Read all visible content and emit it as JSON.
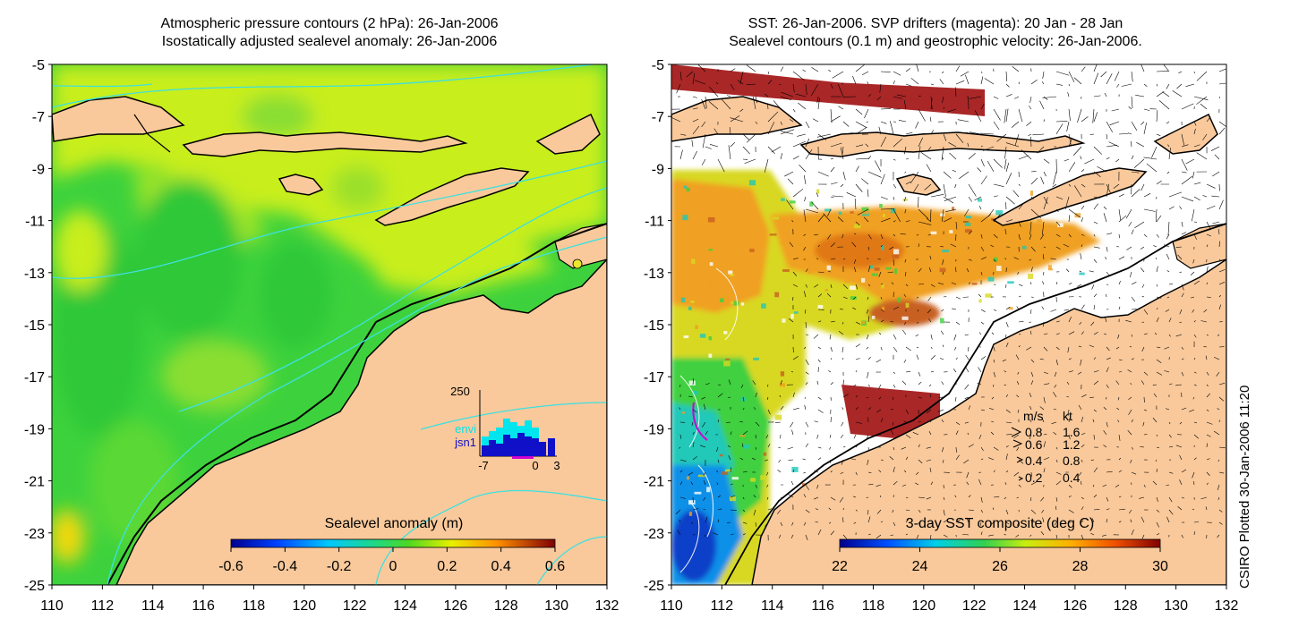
{
  "left_panel": {
    "title_line1": "Atmospheric pressure contours (2 hPa): 26-Jan-2006",
    "title_line2": "Isostatically adjusted sealevel anomaly: 26-Jan-2006",
    "colorbar": {
      "label": "Sealevel anomaly (m)",
      "ticks": [
        "-0.6",
        "-0.4",
        "-0.2",
        "0",
        "0.2",
        "0.4",
        "0.6"
      ],
      "range": [
        -0.6,
        0.6
      ]
    },
    "inset": {
      "ymax_label": "250",
      "legend": [
        {
          "name": "envi",
          "color": "#00e5ee"
        },
        {
          "name": "jsn1",
          "color": "#1010c8"
        }
      ],
      "x_ticks": [
        "-7",
        "0",
        "3"
      ]
    }
  },
  "right_panel": {
    "title_line1": "SST: 26-Jan-2006. SVP drifters (magenta): 20 Jan - 28 Jan",
    "title_line2": "Sealevel contours (0.1 m) and geostrophic velocity: 26-Jan-2006.",
    "colorbar": {
      "label": "3-day SST composite (deg C)",
      "ticks": [
        "22",
        "24",
        "26",
        "28",
        "30"
      ],
      "range": [
        22,
        30
      ]
    },
    "velocity_legend": {
      "header_ms": "m/s",
      "header_kt": "kt",
      "rows": [
        {
          "ms": "0.8",
          "kt": "1.6"
        },
        {
          "ms": "0.6",
          "kt": "1.2"
        },
        {
          "ms": "0.4",
          "kt": "0.8"
        },
        {
          "ms": "0.2",
          "kt": "0.4"
        }
      ]
    }
  },
  "axes": {
    "lat_ticks": [
      "-5",
      "-7",
      "-9",
      "-11",
      "-13",
      "-15",
      "-17",
      "-19",
      "-21",
      "-23",
      "-25"
    ],
    "lon_ticks": [
      "110",
      "112",
      "114",
      "116",
      "118",
      "120",
      "122",
      "124",
      "126",
      "128",
      "130",
      "132"
    ]
  },
  "credit": "CSIRO Plotted 30-Jan-2006 11:20",
  "colors": {
    "land": "#f9c99b",
    "sea_green": "#3dd23d",
    "sea_yellow": "#c8ee1e",
    "contour": "#3ee0e0"
  }
}
